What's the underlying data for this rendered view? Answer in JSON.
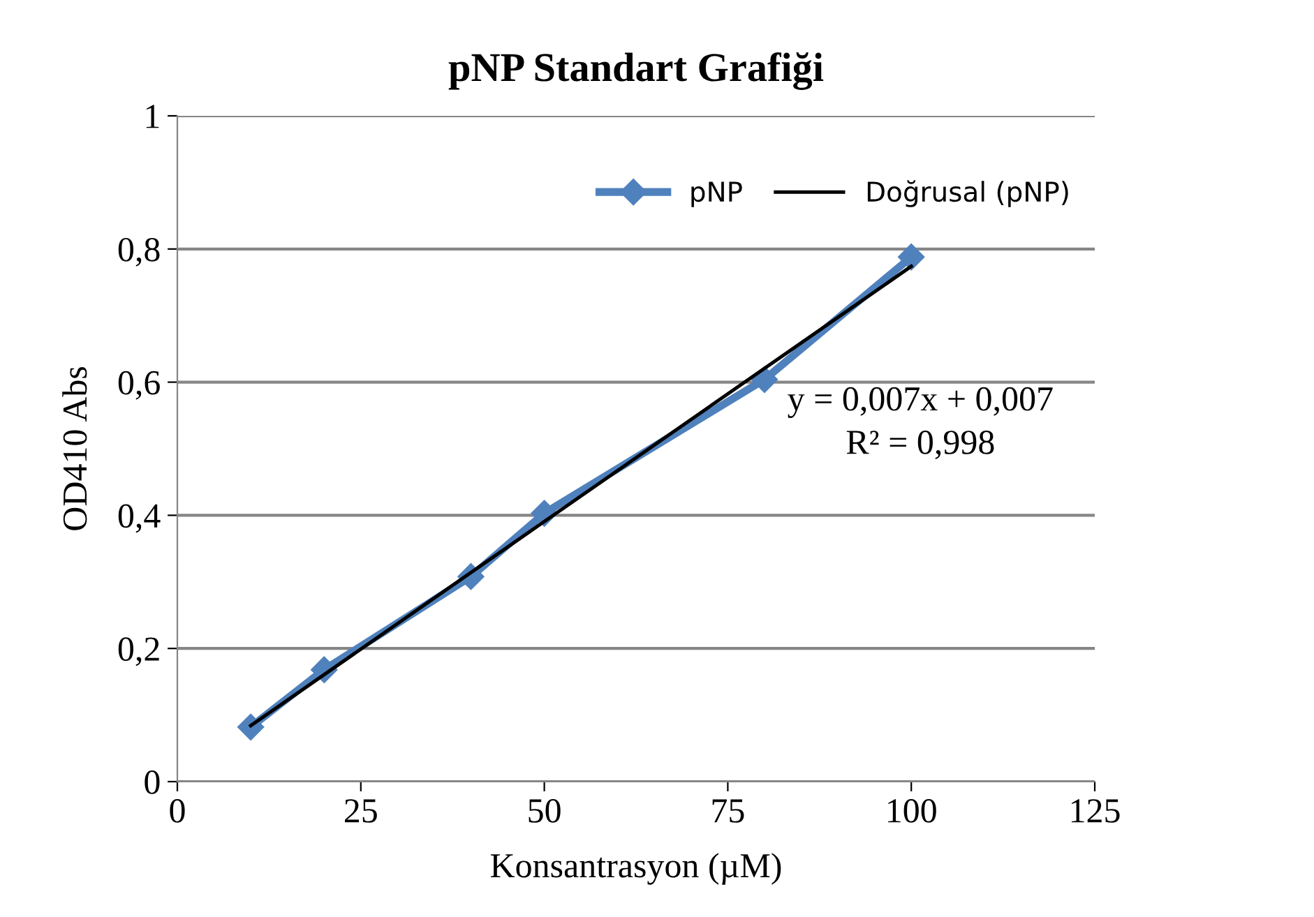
{
  "chart_data": {
    "type": "line",
    "title": "pNP Standart Grafiği",
    "xlabel": "Konsantrasyon (µM)",
    "ylabel": "OD410 Abs",
    "series": [
      {
        "name": "pNP",
        "color": "#4f81bd",
        "x": [
          10,
          20,
          40,
          50,
          80,
          100
        ],
        "values": [
          0.082,
          0.168,
          0.308,
          0.403,
          0.604,
          0.788
        ],
        "marker": "diamond"
      },
      {
        "name": "Doğrusal (pNP)",
        "type": "line",
        "color": "#000000",
        "x": [
          10,
          100
        ],
        "values": [
          0.084,
          0.774
        ],
        "marker": "none"
      }
    ],
    "xlim": [
      0,
      125
    ],
    "xticks": [
      0,
      25,
      50,
      75,
      100,
      125
    ],
    "ylim": [
      0,
      1
    ],
    "yticks": [
      0,
      {
        "value": 0.2,
        "label": "0,2"
      },
      {
        "value": 0.4,
        "label": "0,4"
      },
      {
        "value": 0.6,
        "label": "0,6"
      },
      {
        "value": 0.8,
        "label": "0,8"
      },
      1
    ],
    "grid": "y",
    "legend": "top right",
    "annotations": [
      "y = 0,007x + 0,007",
      "R² = 0,998"
    ]
  }
}
